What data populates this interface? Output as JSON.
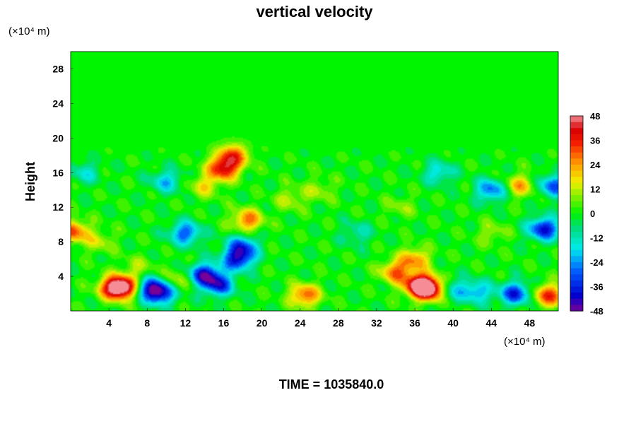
{
  "chart_data": {
    "type": "heatmap",
    "title": "vertical velocity",
    "xlabel": "",
    "ylabel": "Height",
    "x_unit": "(×10⁴ m)",
    "y_unit": "(×10⁴ m)",
    "xlim": [
      0,
      51
    ],
    "ylim": [
      0,
      30
    ],
    "x_ticks": [
      "4",
      "8",
      "12",
      "16",
      "20",
      "24",
      "28",
      "32",
      "36",
      "40",
      "44",
      "48"
    ],
    "y_ticks": [
      "4",
      "8",
      "12",
      "16",
      "20",
      "24",
      "28"
    ],
    "colorbar": {
      "min": -48,
      "max": 48,
      "ticks": [
        "48",
        "36",
        "24",
        "12",
        "0",
        "-12",
        "-24",
        "-36",
        "-48"
      ]
    },
    "background_value": 0,
    "features": [
      {
        "x": 4.5,
        "y": 2.7,
        "value": 34
      },
      {
        "x": 5.5,
        "y": 2.7,
        "value": 40
      },
      {
        "x": 8.5,
        "y": 2.6,
        "value": -36
      },
      {
        "x": 9.5,
        "y": 2.0,
        "value": -30
      },
      {
        "x": 11.0,
        "y": 3.5,
        "value": 14
      },
      {
        "x": 14.0,
        "y": 4.2,
        "value": -40
      },
      {
        "x": 15.5,
        "y": 3.0,
        "value": -34
      },
      {
        "x": 17.5,
        "y": 6.0,
        "value": -38
      },
      {
        "x": 18.0,
        "y": 7.5,
        "value": -28
      },
      {
        "x": 12.0,
        "y": 9.0,
        "value": -30
      },
      {
        "x": 0.3,
        "y": 9.2,
        "value": 30
      },
      {
        "x": 16.0,
        "y": 16.5,
        "value": 40
      },
      {
        "x": 17.0,
        "y": 18.0,
        "value": 30
      },
      {
        "x": 14.0,
        "y": 14.5,
        "value": 16
      },
      {
        "x": 18.5,
        "y": 10.5,
        "value": 28
      },
      {
        "x": 24.5,
        "y": 1.8,
        "value": 30
      },
      {
        "x": 23.0,
        "y": 13.0,
        "value": 12
      },
      {
        "x": 26.0,
        "y": 14.0,
        "value": 10
      },
      {
        "x": 34.0,
        "y": 4.5,
        "value": 28
      },
      {
        "x": 36.5,
        "y": 3.0,
        "value": 44
      },
      {
        "x": 37.5,
        "y": 2.5,
        "value": 46
      },
      {
        "x": 36.0,
        "y": 6.0,
        "value": 24
      },
      {
        "x": 40.0,
        "y": 2.5,
        "value": -16
      },
      {
        "x": 42.5,
        "y": 2.2,
        "value": -22
      },
      {
        "x": 46.5,
        "y": 2.0,
        "value": -36
      },
      {
        "x": 50.0,
        "y": 1.8,
        "value": 34
      },
      {
        "x": 49.5,
        "y": 9.5,
        "value": -40
      },
      {
        "x": 44.0,
        "y": 14.0,
        "value": -28
      },
      {
        "x": 38.5,
        "y": 16.0,
        "value": -18
      },
      {
        "x": 50.5,
        "y": 14.5,
        "value": -30
      },
      {
        "x": 47.0,
        "y": 14.5,
        "value": 22
      },
      {
        "x": 1.5,
        "y": 16.0,
        "value": -14
      },
      {
        "x": 10.0,
        "y": 15.0,
        "value": -20
      },
      {
        "x": 3.0,
        "y": 8.0,
        "value": 12
      },
      {
        "x": 7.0,
        "y": 5.0,
        "value": 10
      },
      {
        "x": 30.0,
        "y": 9.0,
        "value": -12
      },
      {
        "x": 44.0,
        "y": 9.0,
        "value": 10
      },
      {
        "x": 34.5,
        "y": 12.0,
        "value": 8
      }
    ],
    "footer": "TIME = 1035840.0"
  }
}
